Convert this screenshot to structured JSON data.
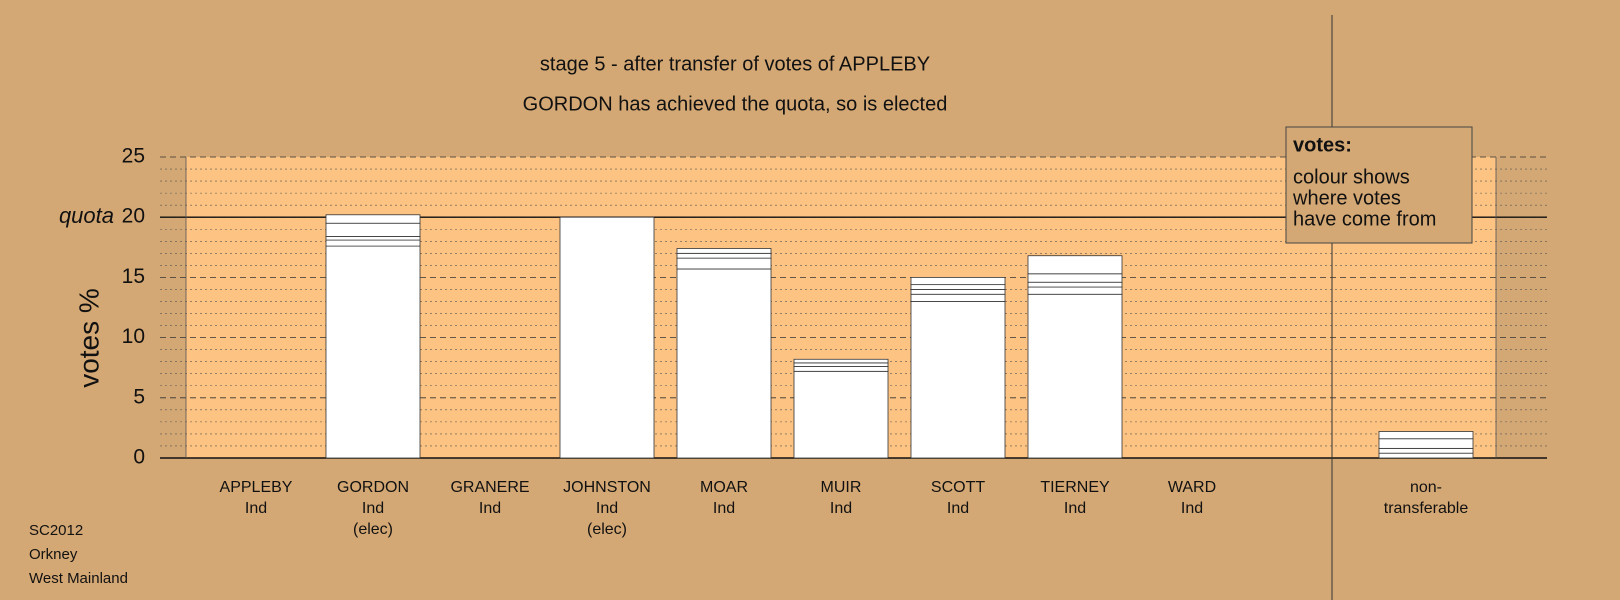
{
  "chart_data": {
    "type": "stacked-bar",
    "title": "stage 5 - after transfer of votes of APPLEBY",
    "subtitle": "GORDON has achieved the quota, so is elected",
    "y_label": "votes %",
    "quota": {
      "value": 20,
      "label": "quota"
    },
    "categories": [
      [
        "APPLEBY",
        "Ind"
      ],
      [
        "GORDON",
        "Ind",
        "(elec)"
      ],
      [
        "GRANERE",
        "Ind"
      ],
      [
        "JOHNSTON",
        "Ind",
        "(elec)"
      ],
      [
        "MOAR",
        "Ind"
      ],
      [
        "MUIR",
        "Ind"
      ],
      [
        "SCOTT",
        "Ind"
      ],
      [
        "TIERNEY",
        "Ind"
      ],
      [
        "WARD",
        "Ind"
      ],
      [
        "non-",
        "transferable"
      ]
    ],
    "segments": [
      [
        0
      ],
      [
        17.6,
        0.5,
        0.3,
        1.1,
        0.7
      ],
      [
        0
      ],
      [
        20.0
      ],
      [
        15.7,
        0.9,
        0.4,
        0.4
      ],
      [
        7.2,
        0.4,
        0.3,
        0.3
      ],
      [
        13.0,
        0.6,
        0.4,
        0.4,
        0.6
      ],
      [
        13.6,
        0.6,
        0.4,
        0.7,
        1.5
      ],
      [
        0
      ],
      [
        0.4,
        0.4,
        0.8,
        0.6
      ]
    ],
    "color": "#ffffff",
    "ylim": [
      0,
      25
    ],
    "yticks": [
      0,
      5,
      10,
      15,
      20,
      25
    ],
    "minor_yticks": [
      1,
      2,
      3,
      4,
      6,
      7,
      8,
      9,
      11,
      12,
      13,
      14,
      16,
      17,
      18,
      19,
      21,
      22,
      23,
      24
    ],
    "grid": true,
    "legend": {
      "title": "votes:",
      "lines": [
        "colour shows",
        "where votes",
        "have come from"
      ]
    },
    "footer": [
      "SC2012",
      "Orkney",
      "West Mainland"
    ]
  }
}
